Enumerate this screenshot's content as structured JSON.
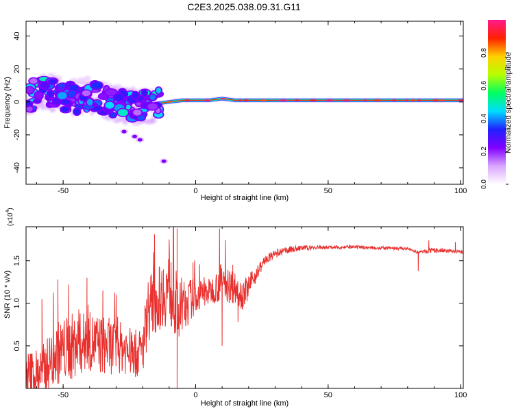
{
  "title": "C2E3.2025.038.09.31.G11",
  "colors": {
    "snr_line": "#e8302e",
    "axis": "#000000",
    "colorbar": [
      "#ffffff",
      "#d9a6ff",
      "#8000ff",
      "#2020ff",
      "#00ddff",
      "#00ff60",
      "#b8ff00",
      "#ffd000",
      "#ff2000",
      "#ff1a8c"
    ]
  },
  "chart_data": [
    {
      "type": "heatmap",
      "xlabel": "Height of straight line (km)",
      "ylabel": "Frequency (Hz)",
      "xlim": [
        -64,
        101
      ],
      "ylim": [
        -50,
        49
      ],
      "x_ticks": [
        "-50",
        "0",
        "50",
        "100"
      ],
      "x_tick_values": [
        -50,
        0,
        50,
        100
      ],
      "y_ticks": [
        "40",
        "20",
        "0",
        "-20",
        "-40"
      ],
      "y_tick_values": [
        40,
        20,
        0,
        -20,
        -40
      ],
      "colorbar": {
        "label": "Normalized spectral amplitude",
        "ticks": [
          "0.0",
          "0.2",
          "0.4",
          "0.6",
          "0.8"
        ],
        "tick_values": [
          0,
          0.2,
          0.4,
          0.6,
          0.8
        ],
        "range": [
          0,
          1
        ]
      },
      "description_points": {
        "band_center_hz": [
          [
            -62,
            7
          ],
          [
            -55,
            6
          ],
          [
            -50,
            3
          ],
          [
            -45,
            2
          ],
          [
            -40,
            4
          ],
          [
            -35,
            2
          ],
          [
            -30,
            -1
          ],
          [
            -25,
            -3
          ],
          [
            -20,
            -2
          ],
          [
            -15,
            -1
          ],
          [
            -10,
            0
          ],
          [
            -5,
            1
          ],
          [
            0,
            1
          ],
          [
            5,
            1
          ],
          [
            10,
            2
          ],
          [
            15,
            1
          ],
          [
            20,
            1
          ],
          [
            30,
            1
          ],
          [
            50,
            1
          ],
          [
            70,
            1
          ],
          [
            100,
            1
          ]
        ],
        "outlier_points": [
          [
            -27,
            -18
          ],
          [
            -23,
            -21
          ],
          [
            -21,
            -23
          ],
          [
            -12,
            -36
          ]
        ]
      }
    },
    {
      "type": "line",
      "xlabel": "Height of straight line (km)",
      "ylabel": "SNR (10 * v/v)",
      "y_multiplier": "(x10",
      "y_multiplier_exp": "4",
      "y_multiplier_close": ")",
      "xlim": [
        -64,
        101
      ],
      "ylim": [
        0,
        1.9
      ],
      "x_ticks": [
        "-50",
        "0",
        "50",
        "100"
      ],
      "x_tick_values": [
        -50,
        0,
        50,
        100
      ],
      "y_ticks": [
        "0.5",
        "1.0",
        "1.5"
      ],
      "y_tick_values": [
        0.5,
        1.0,
        1.5
      ],
      "series": [
        {
          "envelope": {
            "x": [
              -64,
              -58,
              -52,
              -46,
              -40,
              -34,
              -28,
              -22,
              -20,
              -18,
              -14,
              -10,
              -6,
              -2,
              2,
              6,
              10,
              14,
              18,
              22,
              26,
              30,
              35,
              40,
              50,
              60,
              70,
              80,
              84,
              90,
              95,
              101
            ],
            "y": [
              0.1,
              0.2,
              0.42,
              0.5,
              0.55,
              0.5,
              0.48,
              0.4,
              0.45,
              0.95,
              1.05,
              1.2,
              0.85,
              1.05,
              1.1,
              1.15,
              1.25,
              1.2,
              1.1,
              1.3,
              1.5,
              1.58,
              1.63,
              1.65,
              1.66,
              1.66,
              1.65,
              1.64,
              1.6,
              1.62,
              1.62,
              1.6
            ]
          },
          "noise": [
            0.35,
            0.3,
            0.38,
            0.4,
            0.35,
            0.35,
            0.3,
            0.28,
            0.3,
            0.4,
            0.38,
            0.45,
            0.4,
            0.25,
            0.18,
            0.15,
            0.25,
            0.2,
            0.18,
            0.1,
            0.06,
            0.05,
            0.04,
            0.03,
            0.02,
            0.02,
            0.02,
            0.02,
            0.02,
            0.03,
            0.02,
            0.02
          ],
          "spikes": [
            [
              -58,
              1.05
            ],
            [
              -52,
              1.28
            ],
            [
              -48,
              1.22
            ],
            [
              -41,
              1.3
            ],
            [
              -35,
              1.15
            ],
            [
              -30,
              1.1
            ],
            [
              -16,
              1.6
            ],
            [
              -10,
              1.75
            ],
            [
              -7,
              1.88
            ],
            [
              -7,
              0.0
            ],
            [
              -1,
              1.48
            ],
            [
              9,
              1.88
            ],
            [
              10,
              0.5
            ],
            [
              14,
              1.45
            ],
            [
              16,
              0.78
            ],
            [
              84,
              1.38
            ],
            [
              88,
              1.74
            ],
            [
              98,
              1.72
            ]
          ]
        }
      ]
    }
  ]
}
